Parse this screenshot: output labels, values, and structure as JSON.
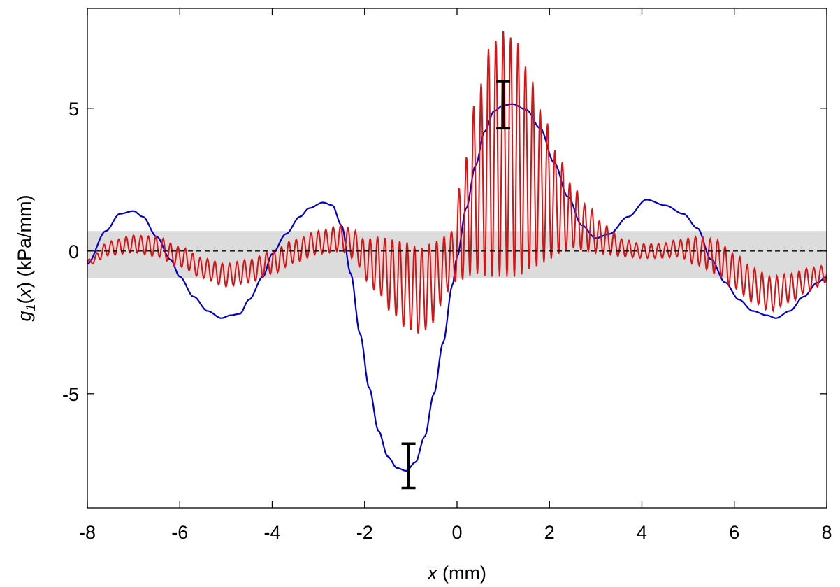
{
  "chart_data": {
    "type": "line",
    "xlabel": {
      "var": "x",
      "rest": " (mm)"
    },
    "ylabel": {
      "var": "g",
      "sub": "1",
      "mid": "(",
      "arg": "x",
      "rest": ") (kPa/mm)"
    },
    "xlim": [
      -8,
      8
    ],
    "ylim": [
      -9,
      8.5
    ],
    "x_ticks": [
      -8,
      -6,
      -4,
      -2,
      0,
      2,
      4,
      6,
      8
    ],
    "y_ticks": [
      5,
      0,
      -5
    ],
    "x_tick_labels": [
      "-8",
      "-6",
      "-4",
      "-2",
      "0",
      "2",
      "4",
      "6",
      "8"
    ],
    "y_tick_labels": [
      "5",
      "0",
      "-5"
    ],
    "grid": false,
    "shaded_band": {
      "y_range": [
        -0.95,
        0.7
      ],
      "color": "#dcdcdc"
    },
    "reference_line": {
      "y": 0,
      "style": "dashed",
      "color": "#000000"
    },
    "series": [
      {
        "color": "#0000cc",
        "style": "smooth",
        "x": [
          -8,
          -7.6,
          -7.3,
          -7.0,
          -6.8,
          -6.5,
          -6.2,
          -6.0,
          -5.7,
          -5.4,
          -5.1,
          -4.9,
          -4.7,
          -4.5,
          -4.2,
          -4.0,
          -3.7,
          -3.4,
          -3.2,
          -2.9,
          -2.7,
          -2.5,
          -2.3,
          -2.1,
          -1.9,
          -1.7,
          -1.5,
          -1.3,
          -1.1,
          -0.9,
          -0.7,
          -0.5,
          -0.3,
          -0.1,
          0.0,
          0.2,
          0.4,
          0.6,
          0.8,
          1.0,
          1.2,
          1.5,
          1.8,
          2.1,
          2.4,
          2.7,
          3.0,
          3.3,
          3.7,
          4.1,
          4.5,
          4.9,
          5.2,
          5.5,
          5.8,
          6.1,
          6.4,
          6.7,
          6.9,
          7.2,
          7.5,
          7.8,
          8.0
        ],
        "y": [
          -0.45,
          0.7,
          1.3,
          1.4,
          1.2,
          0.5,
          -0.3,
          -0.9,
          -1.6,
          -2.1,
          -2.35,
          -2.25,
          -2.2,
          -1.7,
          -0.9,
          -0.1,
          0.6,
          1.2,
          1.5,
          1.7,
          1.6,
          0.9,
          -0.8,
          -2.9,
          -4.8,
          -6.3,
          -7.2,
          -7.6,
          -7.7,
          -7.4,
          -6.5,
          -5.0,
          -3.2,
          -1.2,
          -0.2,
          1.5,
          3.0,
          4.2,
          4.9,
          5.1,
          5.15,
          4.95,
          4.3,
          3.1,
          1.9,
          0.9,
          0.45,
          0.6,
          1.2,
          1.8,
          1.6,
          1.3,
          0.8,
          -0.3,
          -1.1,
          -1.7,
          -2.1,
          -2.25,
          -2.35,
          -2.1,
          -1.6,
          -1.1,
          -0.9
        ]
      },
      {
        "color": "#dd1111",
        "style": "oscillating",
        "oscillation_period_mm": 0.16,
        "x": [
          -8,
          -7.5,
          -7.0,
          -6.5,
          -6.0,
          -5.5,
          -5.0,
          -4.5,
          -4.0,
          -3.5,
          -3.0,
          -2.5,
          -2.2,
          -2.0,
          -1.7,
          -1.4,
          -1.1,
          -0.8,
          -0.5,
          -0.3,
          -0.1,
          0.1,
          0.4,
          0.7,
          1.0,
          1.3,
          1.6,
          1.9,
          2.2,
          2.5,
          2.8,
          3.2,
          3.6,
          4.0,
          4.4,
          4.8,
          5.2,
          5.6,
          6.0,
          6.4,
          6.8,
          7.2,
          7.6,
          8.0
        ],
        "center": [
          -0.4,
          0.1,
          0.25,
          0.15,
          -0.2,
          -0.6,
          -0.85,
          -0.7,
          -0.4,
          0.0,
          0.3,
          0.45,
          0.2,
          -0.3,
          -0.5,
          -0.9,
          -1.2,
          -1.4,
          -1.1,
          -0.6,
          -0.2,
          0.8,
          2.2,
          3.1,
          3.4,
          3.2,
          2.7,
          2.1,
          1.6,
          1.2,
          0.8,
          0.4,
          0.1,
          0.0,
          0.0,
          0.1,
          0.0,
          -0.2,
          -0.7,
          -1.2,
          -1.5,
          -1.3,
          -1.0,
          -0.8
        ],
        "amplitude": [
          0.1,
          0.25,
          0.3,
          0.35,
          0.35,
          0.35,
          0.4,
          0.4,
          0.4,
          0.4,
          0.4,
          0.45,
          0.5,
          0.7,
          1.0,
          1.3,
          1.5,
          1.5,
          1.4,
          1.1,
          0.9,
          1.8,
          3.0,
          4.0,
          4.3,
          4.1,
          3.3,
          2.5,
          1.7,
          1.1,
          0.8,
          0.5,
          0.3,
          0.25,
          0.25,
          0.3,
          0.5,
          0.6,
          0.6,
          0.6,
          0.6,
          0.5,
          0.4,
          0.3
        ]
      }
    ],
    "error_bars": [
      {
        "x": -1.05,
        "y_low": -8.3,
        "y_high": -6.75
      },
      {
        "x": 1.0,
        "y_low": 4.3,
        "y_high": 5.95
      }
    ]
  }
}
